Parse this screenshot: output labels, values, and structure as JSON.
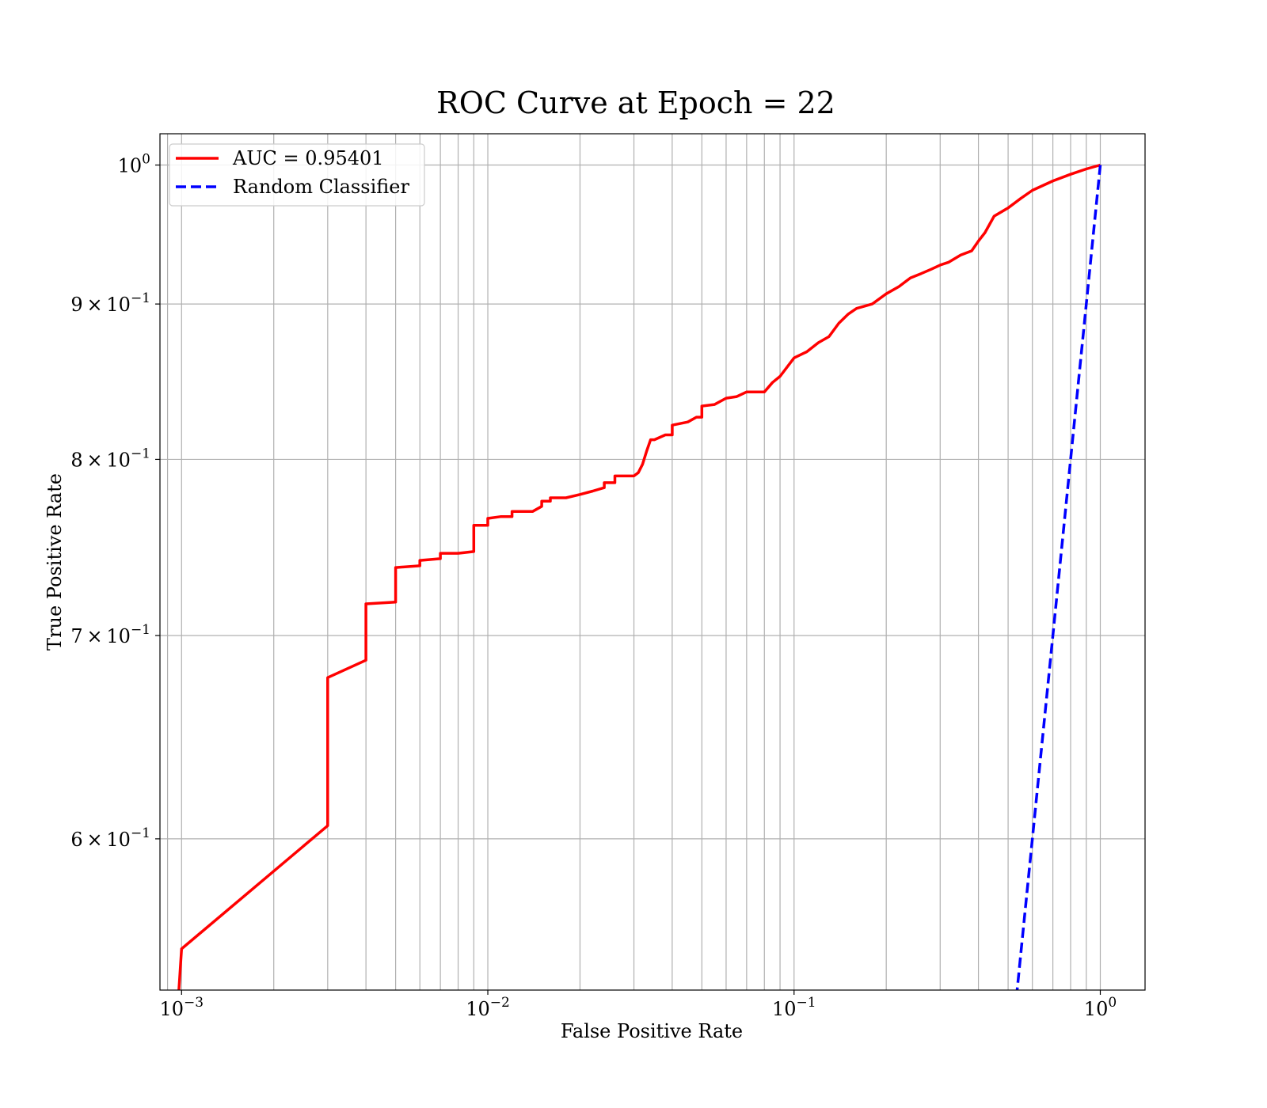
{
  "chart_data": {
    "type": "line",
    "title": "ROC Curve at Epoch = 22",
    "xlabel": "False Positive Rate",
    "ylabel": "True Positive Rate",
    "xscale": "log",
    "yscale": "log",
    "xlim": [
      0.00085,
      1.4
    ],
    "ylim": [
      0.535,
      1.024
    ],
    "grid": true,
    "grid_minor": true,
    "legend_position": "upper left",
    "x_ticks": [
      {
        "base": "10",
        "exp": "−3",
        "value": 0.001
      },
      {
        "base": "10",
        "exp": "−2",
        "value": 0.01
      },
      {
        "base": "10",
        "exp": "−1",
        "value": 0.1
      },
      {
        "base": "10",
        "exp": "0",
        "value": 1
      }
    ],
    "y_ticks": [
      {
        "mant": "6",
        "base": "10",
        "exp": "−1",
        "value": 0.6,
        "label": "6 × 10−1"
      },
      {
        "mant": "7",
        "base": "10",
        "exp": "−1",
        "value": 0.7,
        "label": "7 × 10−1"
      },
      {
        "mant": "8",
        "base": "10",
        "exp": "−1",
        "value": 0.8,
        "label": "8 × 10−1"
      },
      {
        "mant": "9",
        "base": "10",
        "exp": "−1",
        "value": 0.9,
        "label": "9 × 10−1"
      },
      {
        "mant": "",
        "base": "10",
        "exp": "0",
        "value": 1.0,
        "label": "100"
      }
    ],
    "series": [
      {
        "name": "AUC = 0.95401",
        "color": "#ff0000",
        "style": "solid",
        "x": [
          0.00098,
          0.001,
          0.003,
          0.003,
          0.004,
          0.004,
          0.005,
          0.005,
          0.006,
          0.006,
          0.007,
          0.007,
          0.008,
          0.009,
          0.009,
          0.01,
          0.01,
          0.011,
          0.012,
          0.012,
          0.014,
          0.015,
          0.015,
          0.016,
          0.016,
          0.018,
          0.02,
          0.022,
          0.024,
          0.024,
          0.026,
          0.026,
          0.03,
          0.031,
          0.032,
          0.033,
          0.034,
          0.035,
          0.038,
          0.04,
          0.04,
          0.045,
          0.048,
          0.05,
          0.05,
          0.055,
          0.06,
          0.065,
          0.07,
          0.08,
          0.085,
          0.09,
          0.1,
          0.11,
          0.12,
          0.13,
          0.14,
          0.15,
          0.16,
          0.18,
          0.2,
          0.22,
          0.24,
          0.26,
          0.28,
          0.3,
          0.32,
          0.35,
          0.38,
          0.4,
          0.42,
          0.45,
          0.5,
          0.55,
          0.6,
          0.7,
          0.8,
          0.9,
          1.0
        ],
        "y": [
          0.535,
          0.552,
          0.606,
          0.678,
          0.687,
          0.717,
          0.718,
          0.737,
          0.738,
          0.741,
          0.742,
          0.745,
          0.745,
          0.746,
          0.761,
          0.761,
          0.765,
          0.766,
          0.766,
          0.769,
          0.769,
          0.772,
          0.775,
          0.775,
          0.777,
          0.777,
          0.779,
          0.781,
          0.783,
          0.786,
          0.786,
          0.79,
          0.79,
          0.792,
          0.797,
          0.805,
          0.812,
          0.812,
          0.815,
          0.815,
          0.821,
          0.823,
          0.826,
          0.826,
          0.833,
          0.834,
          0.838,
          0.839,
          0.842,
          0.842,
          0.848,
          0.852,
          0.864,
          0.868,
          0.874,
          0.878,
          0.887,
          0.893,
          0.897,
          0.9,
          0.907,
          0.912,
          0.918,
          0.921,
          0.924,
          0.927,
          0.929,
          0.934,
          0.937,
          0.944,
          0.95,
          0.962,
          0.968,
          0.975,
          0.981,
          0.988,
          0.993,
          0.997,
          1.0
        ]
      },
      {
        "name": "Random Classifier",
        "color": "#0000ff",
        "style": "dashed",
        "x": [
          0.52,
          0.6,
          0.7,
          0.8,
          0.9,
          1.0
        ],
        "y": [
          0.52,
          0.6,
          0.7,
          0.8,
          0.9,
          1.0
        ]
      }
    ]
  }
}
